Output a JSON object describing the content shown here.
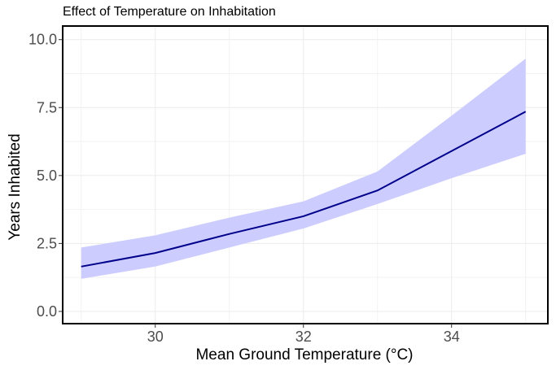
{
  "chart_data": {
    "type": "line",
    "title": "Effect of Temperature on Inhabitation",
    "xlabel": "Mean Ground Temperature (°C)",
    "ylabel": "Years Inhabited",
    "xlim": [
      28.75,
      35.3
    ],
    "ylim": [
      -0.45,
      10.5
    ],
    "xticks": [
      30,
      32,
      34
    ],
    "xtick_labels": [
      "30",
      "32",
      "34"
    ],
    "yticks": [
      0,
      2.5,
      5,
      7.5,
      10
    ],
    "ytick_labels": [
      "0.0",
      "2.5",
      "5.0",
      "7.5",
      "10.0"
    ],
    "grid": true,
    "series": [
      {
        "x": [
          29,
          30,
          31,
          32,
          33,
          34,
          35
        ],
        "y": [
          1.65,
          2.15,
          2.85,
          3.5,
          4.45,
          5.9,
          7.35
        ],
        "lower": [
          1.2,
          1.65,
          2.35,
          3.05,
          3.95,
          4.9,
          5.8
        ],
        "upper": [
          2.35,
          2.8,
          3.45,
          4.05,
          5.15,
          7.2,
          9.3
        ],
        "line_color": "#00008b",
        "band_color": "#ccccff"
      }
    ]
  }
}
